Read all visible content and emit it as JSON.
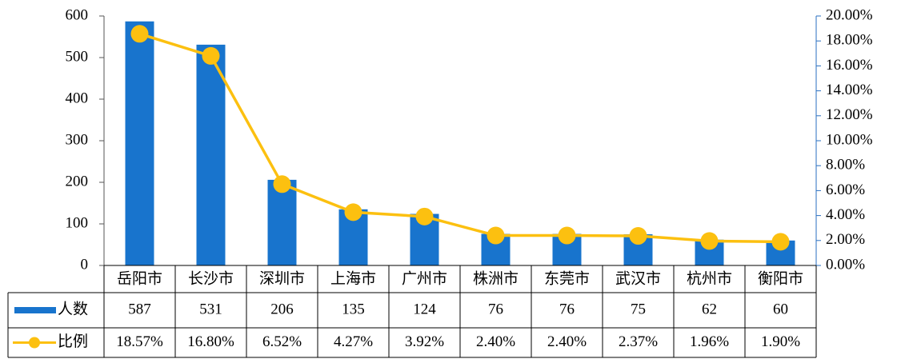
{
  "chart_data": {
    "type": "bar-line-table",
    "categories": [
      "岳阳市",
      "长沙市",
      "深圳市",
      "上海市",
      "广州市",
      "株洲市",
      "东莞市",
      "武汉市",
      "杭州市",
      "衡阳市"
    ],
    "series": [
      {
        "name": "人数",
        "type": "bar",
        "color": "#1874cd",
        "values": [
          587,
          531,
          206,
          135,
          124,
          76,
          76,
          75,
          62,
          60
        ]
      },
      {
        "name": "比例",
        "type": "line",
        "axis": "y2",
        "color": "#fcc010",
        "values": [
          18.57,
          16.8,
          6.52,
          4.27,
          3.92,
          2.4,
          2.4,
          2.37,
          1.96,
          1.9
        ],
        "value_labels": [
          "18.57%",
          "16.80%",
          "6.52%",
          "4.27%",
          "3.92%",
          "2.40%",
          "2.40%",
          "2.37%",
          "1.96%",
          "1.90%"
        ]
      }
    ],
    "ylim": [
      0,
      600
    ],
    "yticks": [
      0,
      100,
      200,
      300,
      400,
      500,
      600
    ],
    "y2lim": [
      0,
      20
    ],
    "y2ticks": [
      {
        "value": 0,
        "label": "0.00%"
      },
      {
        "value": 2,
        "label": "2.00%"
      },
      {
        "value": 4,
        "label": "4.00%"
      },
      {
        "value": 6,
        "label": "6.00%"
      },
      {
        "value": 8,
        "label": "8.00%"
      },
      {
        "value": 10,
        "label": "10.00%"
      },
      {
        "value": 12,
        "label": "12.00%"
      },
      {
        "value": 14,
        "label": "14.00%"
      },
      {
        "value": 16,
        "label": "16.00%"
      },
      {
        "value": 18,
        "label": "18.00%"
      },
      {
        "value": 20,
        "label": "20.00%"
      }
    ],
    "grid": false
  }
}
